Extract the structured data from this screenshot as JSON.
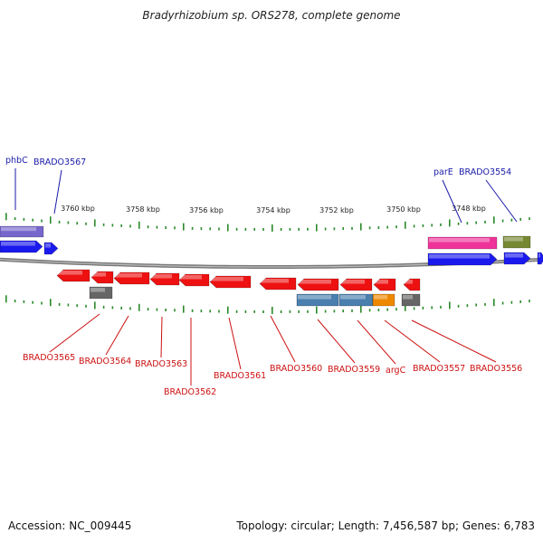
{
  "header": {
    "title": "Bradyrhizobium sp. ORS278, complete genome"
  },
  "footer": {
    "accession": "Accession: NC_009445",
    "summary": "Topology: circular; Length: 7,456,587 bp; Genes: 6,783"
  },
  "scale_ticks": [
    "3760 kbp",
    "3758 kbp",
    "3756 kbp",
    "3754 kbp",
    "3752 kbp",
    "3750 kbp",
    "3748 kbp"
  ],
  "top_labels": [
    {
      "text": "phbC",
      "gene": "phbC"
    },
    {
      "text": "BRADO3567",
      "gene": "brado3567"
    },
    {
      "text": "parE",
      "gene": "parE"
    },
    {
      "text": "BRADO3554",
      "gene": "brado3554"
    }
  ],
  "bottom_labels": [
    {
      "text": "BRADO3565",
      "gene": "brado3565"
    },
    {
      "text": "BRADO3564",
      "gene": "brado3564"
    },
    {
      "text": "BRADO3563",
      "gene": "brado3563"
    },
    {
      "text": "BRADO3562",
      "gene": "brado3562"
    },
    {
      "text": "BRADO3561",
      "gene": "brado3561"
    },
    {
      "text": "BRADO3560",
      "gene": "brado3560"
    },
    {
      "text": "BRADO3559",
      "gene": "brado3559"
    },
    {
      "text": "argC",
      "gene": "argC"
    },
    {
      "text": "BRADO3557",
      "gene": "brado3557"
    },
    {
      "text": "BRADO3556",
      "gene": "brado3556"
    }
  ],
  "colors": {
    "top_label": "#1a1aa8",
    "bottom_label": "#cc1111",
    "tick": "#2a8a2a",
    "backbone": "#888888",
    "forward_cds": "#1a1aee",
    "reverse_cds": "#ee1111",
    "purple_feature": "#7766cc",
    "pink_feature": "#ee3399",
    "olive_feature": "#778833",
    "grey_feature": "#666666",
    "steelblue_feature": "#4a7fae",
    "orange_feature": "#ee8800"
  }
}
